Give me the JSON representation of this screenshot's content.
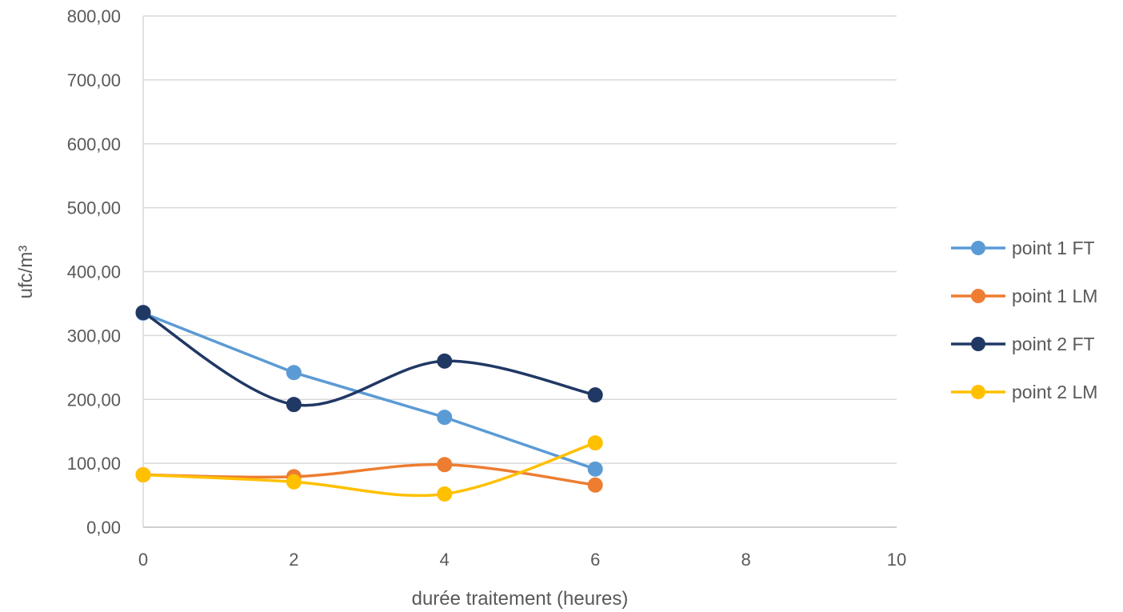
{
  "chart_data": {
    "type": "line",
    "title": "",
    "xlabel": "durée traitement (heures)",
    "ylabel": "ufc/m³",
    "xlim": [
      0,
      10
    ],
    "ylim": [
      0,
      800
    ],
    "x_ticks": [
      0,
      2,
      4,
      6,
      8,
      10
    ],
    "x_tick_labels": [
      "0",
      "2",
      "4",
      "6",
      "8",
      "10"
    ],
    "y_ticks": [
      0,
      100,
      200,
      300,
      400,
      500,
      600,
      700,
      800
    ],
    "y_tick_labels": [
      "0,00",
      "100,00",
      "200,00",
      "300,00",
      "400,00",
      "500,00",
      "600,00",
      "700,00",
      "800,00"
    ],
    "grid": "horizontal",
    "legend_position": "right",
    "series": [
      {
        "name": "point 1 FT",
        "color": "#5B9BD5",
        "smooth": false,
        "x": [
          0,
          2,
          4,
          6
        ],
        "y": [
          335,
          242,
          172,
          91
        ]
      },
      {
        "name": "point 1 LM",
        "color": "#ED7D31",
        "smooth": true,
        "x": [
          0,
          2,
          4,
          6
        ],
        "y": [
          82,
          79,
          98,
          66
        ]
      },
      {
        "name": "point 2 FT",
        "color": "#203864",
        "smooth": true,
        "x": [
          0,
          2,
          4,
          6
        ],
        "y": [
          336,
          192,
          260,
          207
        ]
      },
      {
        "name": "point 2 LM",
        "color": "#FFC000",
        "smooth": true,
        "x": [
          0,
          2,
          4,
          6
        ],
        "y": [
          82,
          71,
          52,
          132
        ]
      }
    ]
  }
}
